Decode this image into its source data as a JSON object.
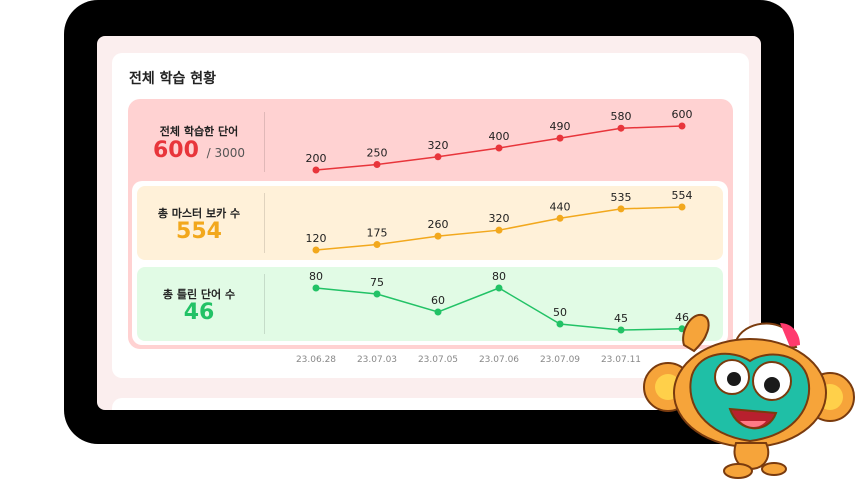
{
  "title": "전체 학습 현황",
  "chart_data": {
    "type": "line",
    "categories": [
      "23.06.28",
      "23.07.03",
      "23.07.05",
      "23.07.06",
      "23.07.09",
      "23.07.11",
      ""
    ],
    "series": [
      {
        "name": "전체 학습한 단어",
        "big_value": "600",
        "total": "/ 3000",
        "color": "#e8353b",
        "values": [
          200,
          250,
          320,
          400,
          490,
          580,
          600
        ]
      },
      {
        "name": "총 마스터 보카 수",
        "big_value": "554",
        "color": "#f2a81d",
        "values": [
          120,
          175,
          260,
          320,
          440,
          535,
          554
        ]
      },
      {
        "name": "총 틀린 단어 수",
        "big_value": "46",
        "color": "#22c266",
        "values": [
          80,
          75,
          60,
          80,
          50,
          45,
          46
        ]
      }
    ]
  },
  "mascot": {
    "icon": "monkey-mascot-icon"
  }
}
